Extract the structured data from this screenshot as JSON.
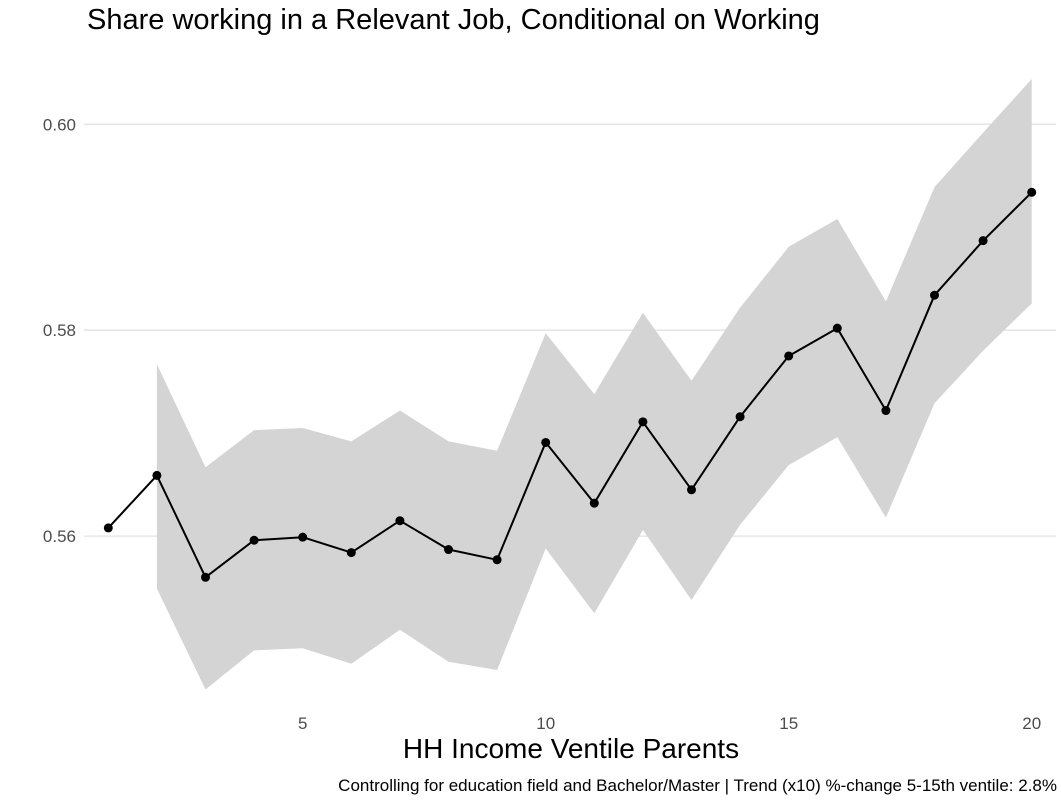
{
  "chart_data": {
    "type": "line",
    "title": "Share working in a Relevant Job, Conditional on Working",
    "xlabel": "HH Income Ventile Parents",
    "ylabel": "",
    "caption": "Controlling for education field and Bachelor/Master | Trend (x10) %-change 5-15th ventile: 2.8%",
    "xlim": [
      0.5,
      20.5
    ],
    "ylim": [
      0.5435,
      0.6045
    ],
    "x_ticks": [
      5,
      10,
      15,
      20
    ],
    "y_ticks": [
      0.56,
      0.58,
      0.6
    ],
    "y_tick_labels": [
      "0.56",
      "0.58",
      "0.60"
    ],
    "grid": true,
    "series": [
      {
        "x": [
          1,
          2,
          3,
          4,
          5,
          6,
          7,
          8,
          9,
          10,
          11,
          12,
          13,
          14,
          15,
          16,
          17,
          18,
          19,
          20
        ],
        "y": [
          0.5608,
          0.5659,
          0.556,
          0.5596,
          0.5599,
          0.5584,
          0.5615,
          0.5587,
          0.5577,
          0.5691,
          0.5632,
          0.5711,
          0.5645,
          0.5716,
          0.5775,
          0.5802,
          0.5722,
          0.5834,
          0.5887,
          0.5934
        ],
        "ci_x": [
          2,
          3,
          4,
          5,
          6,
          7,
          8,
          9,
          10,
          11,
          12,
          13,
          14,
          15,
          16,
          17,
          18,
          19,
          20
        ],
        "ci_lower": [
          0.5549,
          0.5451,
          0.5489,
          0.5491,
          0.5476,
          0.5509,
          0.5478,
          0.547,
          0.5588,
          0.5525,
          0.5606,
          0.5538,
          0.5611,
          0.5669,
          0.5696,
          0.5618,
          0.5729,
          0.578,
          0.5826
        ],
        "ci_upper": [
          0.5767,
          0.5667,
          0.5703,
          0.5705,
          0.5692,
          0.5722,
          0.5692,
          0.5683,
          0.5797,
          0.5738,
          0.5817,
          0.5751,
          0.5822,
          0.5881,
          0.5908,
          0.5828,
          0.5939,
          0.5992,
          0.6044
        ]
      }
    ],
    "colors": {
      "line": "#000000",
      "ribbon": "#d4d4d4",
      "grid": "#e6e6e6",
      "tick_text": "#4d4d4d"
    }
  }
}
